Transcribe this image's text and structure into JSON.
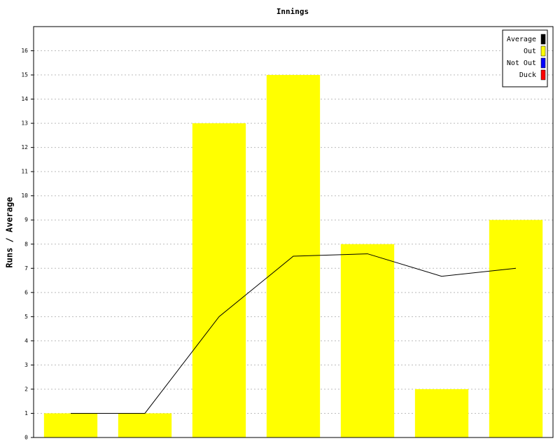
{
  "chart_data": {
    "type": "bar",
    "title": "Innings",
    "y_label": "Runs / Average",
    "categories": [
      null,
      null,
      null,
      null,
      null,
      null,
      null
    ],
    "series": [
      {
        "name": "Average",
        "color": "#000000",
        "type": "line",
        "values": [
          1,
          1,
          5,
          7.5,
          7.6,
          6.67,
          7
        ]
      },
      {
        "name": "Out",
        "color": "#ffff00",
        "type": "bar",
        "values": [
          1,
          1,
          13,
          15,
          8,
          2,
          9
        ]
      },
      {
        "name": "Not Out",
        "color": "#0000ff",
        "type": "bar",
        "values": [
          null,
          null,
          null,
          null,
          null,
          null,
          null
        ]
      },
      {
        "name": "Duck",
        "color": "#ff0000",
        "type": "bar",
        "values": [
          null,
          null,
          null,
          null,
          null,
          null,
          null
        ]
      }
    ],
    "ylim": [
      0,
      17
    ],
    "yticks": [
      0,
      1,
      2,
      3,
      4,
      5,
      6,
      7,
      8,
      9,
      10,
      11,
      12,
      13,
      14,
      15,
      16
    ],
    "grid": true,
    "legend": "top-right"
  }
}
